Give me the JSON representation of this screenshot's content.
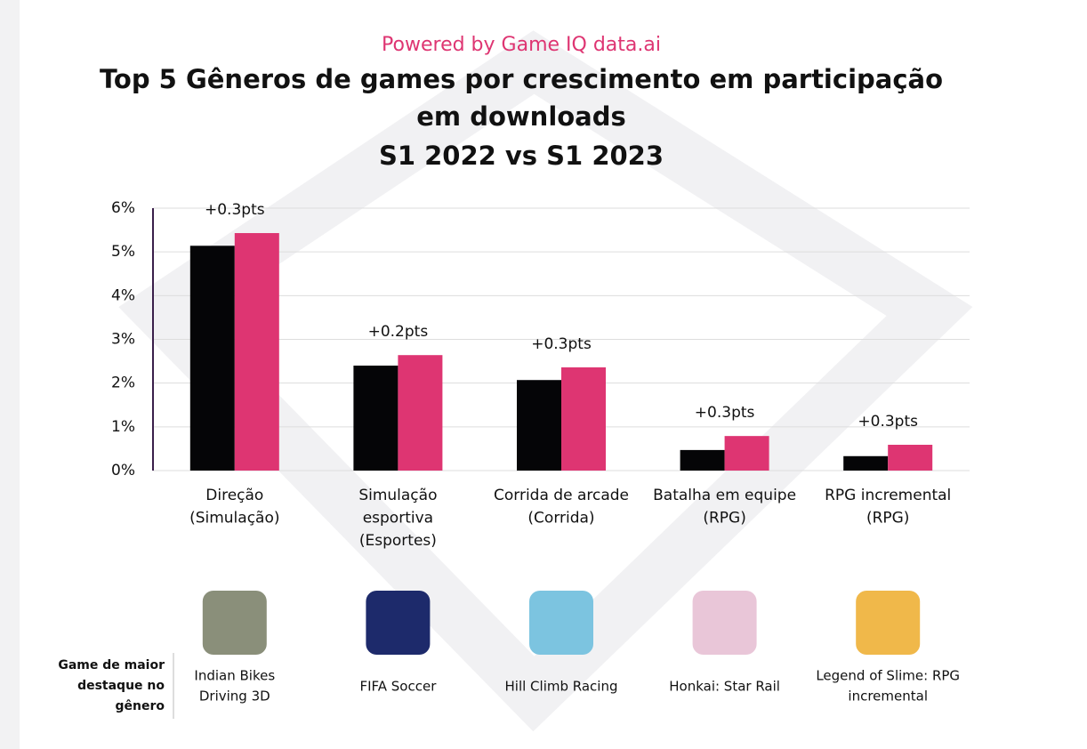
{
  "chart_data": {
    "type": "bar",
    "kicker": "Powered by Game IQ data.ai",
    "title": "Top 5 Gêneros de games por crescimento em participação em downloads",
    "subtitle": "S1 2022 vs S1 2023",
    "categories": [
      [
        "Direção",
        "(Simulação)"
      ],
      [
        "Simulação",
        "esportiva",
        "(Esportes)"
      ],
      [
        "Corrida de arcade",
        "(Corrida)"
      ],
      [
        "Batalha em equipe",
        "(RPG)"
      ],
      [
        "RPG incremental",
        "(RPG)"
      ]
    ],
    "series": [
      {
        "color": "#050507",
        "values": [
          5.14,
          2.4,
          2.07,
          0.47,
          0.33
        ]
      },
      {
        "color": "#de3572",
        "values": [
          5.43,
          2.64,
          2.36,
          0.79,
          0.59
        ]
      }
    ],
    "annotations": [
      "+0.3pts",
      "+0.2pts",
      "+0.3pts",
      "+0.3pts",
      "+0.3pts"
    ],
    "ylim": [
      0,
      6
    ],
    "yticks": [
      {
        "value": 0,
        "label": "0%"
      },
      {
        "value": 1,
        "label": "1%"
      },
      {
        "value": 2,
        "label": "2%"
      },
      {
        "value": 3,
        "label": "3%"
      },
      {
        "value": 4,
        "label": "4%"
      },
      {
        "value": 5,
        "label": "5%"
      },
      {
        "value": 6,
        "label": "6%"
      }
    ],
    "grid": true,
    "games_label": [
      "Game de maior",
      "destaque no",
      "gênero"
    ],
    "games": [
      [
        "Indian Bikes",
        "Driving 3D"
      ],
      [
        "FIFA Soccer"
      ],
      [
        "Hill Climb Racing"
      ],
      [
        "Honkai: Star Rail"
      ],
      [
        "Legend of Slime: RPG",
        "incremental"
      ]
    ]
  }
}
